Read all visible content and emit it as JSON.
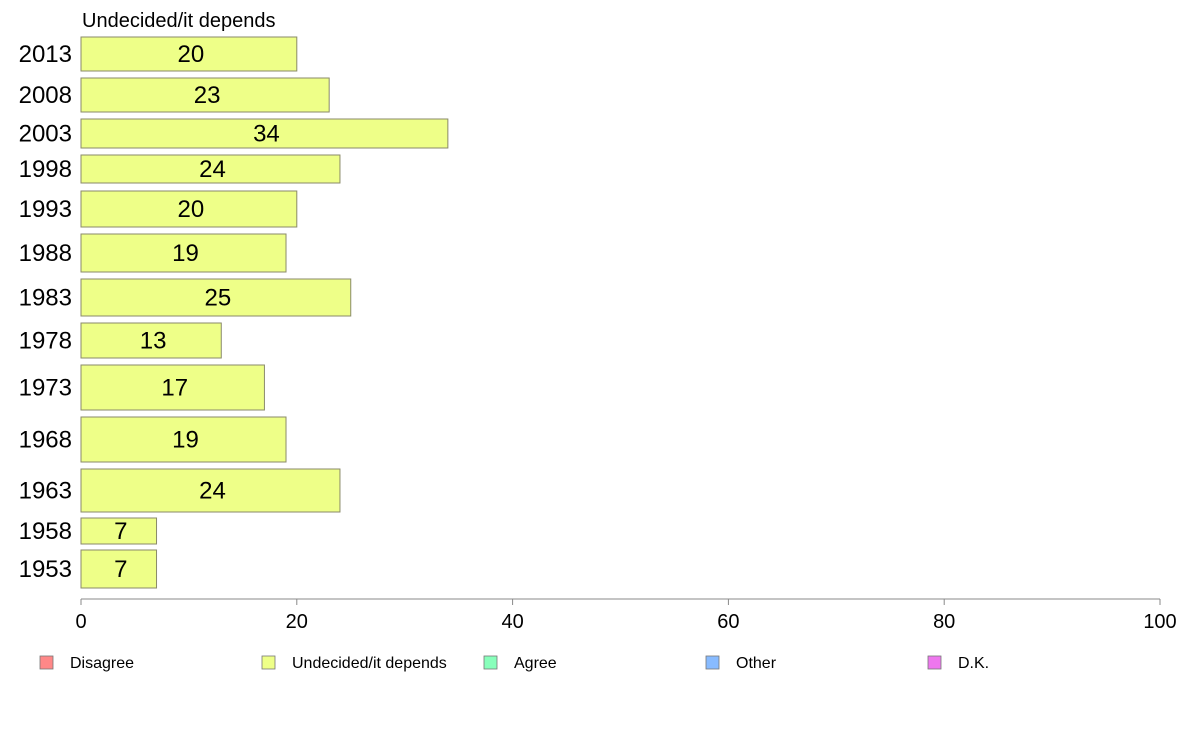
{
  "chart_data": {
    "type": "bar",
    "orientation": "horizontal",
    "title": "Undecided/it depends",
    "categories": [
      "2013",
      "2008",
      "2003",
      "1998",
      "1993",
      "1988",
      "1983",
      "1978",
      "1973",
      "1968",
      "1963",
      "1958",
      "1953"
    ],
    "series": [
      {
        "name": "Undecided/it depends",
        "values": [
          20,
          23,
          34,
          24,
          20,
          19,
          25,
          13,
          17,
          19,
          24,
          7,
          7
        ]
      }
    ],
    "value_labels": [
      "20",
      "23",
      "34",
      "24",
      "20",
      "19",
      "25",
      "13",
      "17",
      "19",
      "24",
      "7",
      "7"
    ],
    "xlim": [
      0,
      100
    ],
    "xticks": [
      0,
      20,
      40,
      60,
      80,
      100
    ],
    "grid": false,
    "legend": {
      "position": "bottom",
      "entries": [
        {
          "label": "Disagree",
          "color": "#ff8888"
        },
        {
          "label": "Undecided/it depends",
          "color": "#eeff88"
        },
        {
          "label": "Agree",
          "color": "#88ffbb"
        },
        {
          "label": "Other",
          "color": "#88bbff"
        },
        {
          "label": "D.K.",
          "color": "#ee77ee"
        }
      ]
    },
    "bar_color": "#eeff88",
    "bar_stroke": "#8a8a6a",
    "axis_color": "#888888"
  }
}
